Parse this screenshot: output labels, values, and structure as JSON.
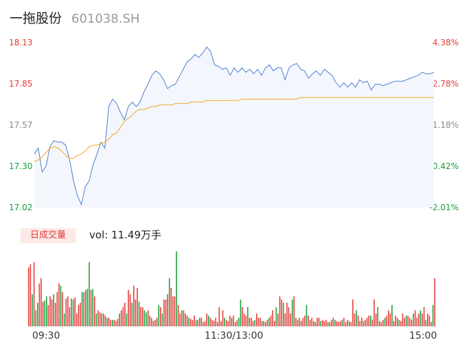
{
  "header": {
    "name": "一拖股份",
    "code": "601038.SH"
  },
  "colors": {
    "up": "#e53935",
    "down": "#1a9e3a",
    "price_line": "#4a7fd6",
    "avg_line": "#f5a623",
    "area_fill": "#f3f6fc"
  },
  "volume": {
    "badge": "日成交量",
    "text": "vol: 11.49万手"
  },
  "chart_data": [
    {
      "type": "line",
      "title": "",
      "y_left_ticks": [
        "18.13",
        "17.85",
        "17.57",
        "17.30",
        "17.02"
      ],
      "y_right_ticks": [
        "4.38%",
        "2.78%",
        "1.18%",
        "-0.42%",
        "-2.01%"
      ],
      "ylim": [
        17.02,
        18.13
      ],
      "x_ticks": [
        "09:30",
        "11:30/13:00",
        "15:00"
      ],
      "series": [
        {
          "type": "price",
          "values": [
            17.38,
            17.42,
            17.26,
            17.3,
            17.43,
            17.47,
            17.46,
            17.46,
            17.44,
            17.34,
            17.2,
            17.1,
            17.04,
            17.16,
            17.2,
            17.31,
            17.38,
            17.46,
            17.42,
            17.7,
            17.75,
            17.72,
            17.66,
            17.61,
            17.7,
            17.73,
            17.7,
            17.73,
            17.8,
            17.85,
            17.91,
            17.94,
            17.92,
            17.88,
            17.82,
            17.84,
            17.85,
            17.9,
            17.95,
            18.0,
            18.02,
            18.05,
            18.03,
            18.06,
            18.1,
            18.07,
            17.98,
            17.97,
            17.95,
            17.96,
            17.91,
            17.96,
            17.93,
            17.96,
            17.93,
            17.95,
            17.92,
            17.95,
            17.91,
            17.96,
            17.98,
            17.94,
            17.96,
            17.96,
            17.88,
            17.96,
            17.98,
            17.99,
            17.95,
            17.94,
            17.89,
            17.92,
            17.94,
            17.91,
            17.95,
            17.93,
            17.91,
            17.86,
            17.83,
            17.86,
            17.83,
            17.86,
            17.83,
            17.88,
            17.86,
            17.87,
            17.81,
            17.85,
            17.85,
            17.84,
            17.85,
            17.86,
            17.87,
            17.87,
            17.87,
            17.88,
            17.89,
            17.9,
            17.91,
            17.93,
            17.92,
            17.92,
            17.93
          ]
        },
        {
          "type": "average",
          "values": [
            17.33,
            17.34,
            17.36,
            17.39,
            17.42,
            17.43,
            17.42,
            17.4,
            17.37,
            17.35,
            17.35,
            17.37,
            17.38,
            17.4,
            17.43,
            17.44,
            17.44,
            17.45,
            17.46,
            17.48,
            17.51,
            17.52,
            17.56,
            17.6,
            17.62,
            17.64,
            17.67,
            17.68,
            17.68,
            17.69,
            17.7,
            17.7,
            17.71,
            17.71,
            17.71,
            17.71,
            17.72,
            17.72,
            17.72,
            17.72,
            17.73,
            17.73,
            17.73,
            17.73,
            17.74,
            17.74,
            17.74,
            17.74,
            17.74,
            17.74,
            17.74,
            17.74,
            17.74,
            17.75,
            17.75,
            17.75,
            17.75,
            17.75,
            17.75,
            17.75,
            17.75,
            17.75,
            17.75,
            17.75,
            17.75,
            17.75,
            17.75,
            17.75,
            17.76,
            17.76,
            17.76,
            17.76,
            17.76,
            17.76,
            17.76,
            17.76,
            17.76,
            17.76,
            17.76,
            17.76,
            17.76,
            17.76,
            17.76,
            17.76,
            17.76,
            17.76,
            17.76,
            17.76,
            17.76,
            17.76,
            17.76,
            17.76,
            17.76,
            17.76,
            17.76,
            17.76,
            17.76,
            17.76,
            17.76,
            17.76,
            17.76,
            17.76,
            17.76
          ]
        }
      ]
    },
    {
      "type": "bar",
      "title": "",
      "values": [
        55,
        58,
        30,
        60,
        15,
        22,
        40,
        45,
        23,
        24,
        28,
        20,
        28,
        25,
        30,
        22,
        32,
        40,
        38,
        32,
        12,
        26,
        28,
        18,
        26,
        25,
        27,
        12,
        20,
        22,
        32,
        32,
        34,
        35,
        60,
        34,
        35,
        28,
        12,
        15,
        13,
        12,
        12,
        10,
        8,
        8,
        6,
        6,
        6,
        5,
        7,
        12,
        15,
        18,
        22,
        12,
        34,
        30,
        22,
        38,
        25,
        36,
        23,
        18,
        18,
        15,
        13,
        15,
        10,
        8,
        5,
        6,
        8,
        20,
        18,
        12,
        25,
        25,
        30,
        45,
        36,
        28,
        28,
        70,
        20,
        12,
        15,
        15,
        12,
        10,
        8,
        7,
        6,
        10,
        6,
        6,
        8,
        8,
        4,
        5,
        12,
        10,
        8,
        6,
        5,
        8,
        4,
        18,
        5,
        15,
        8,
        6,
        5,
        10,
        8,
        10,
        4,
        6,
        8,
        25,
        18,
        12,
        10,
        18,
        8,
        8,
        5,
        6,
        12,
        8,
        8,
        5,
        5,
        4,
        6,
        8,
        10,
        15,
        5,
        18,
        12,
        28,
        25,
        22,
        12,
        22,
        18,
        12,
        25,
        28,
        8,
        6,
        8,
        5,
        8,
        10,
        20,
        10,
        6,
        8,
        5,
        4,
        8,
        8,
        5,
        6,
        5,
        6,
        4,
        4,
        6,
        8,
        6,
        5,
        4,
        5,
        6,
        8,
        4,
        6,
        5,
        4,
        25,
        12,
        15,
        10,
        5,
        8,
        5,
        6,
        8,
        10,
        10,
        6,
        25,
        12,
        18,
        5,
        4,
        6,
        8,
        10,
        15,
        12,
        20,
        5,
        10,
        8,
        6,
        5,
        12,
        8,
        10,
        10,
        8,
        6,
        12,
        15,
        8,
        12,
        15,
        12,
        18,
        6,
        12,
        10,
        4,
        20,
        45
      ],
      "colors": [
        "up",
        "up",
        "down",
        "up",
        "down",
        "down",
        "up",
        "up",
        "up",
        "down",
        "down",
        "up",
        "up",
        "up",
        "down",
        "up",
        "up",
        "up",
        "down",
        "up",
        "down",
        "up",
        "up",
        "up",
        "down",
        "down",
        "up",
        "up",
        "up",
        "up",
        "down",
        "up",
        "down",
        "down",
        "down",
        "up",
        "down",
        "up",
        "down",
        "up",
        "up",
        "down",
        "up",
        "up",
        "down",
        "up",
        "up",
        "down",
        "up",
        "up",
        "up",
        "down",
        "up",
        "up",
        "up",
        "down",
        "up",
        "up",
        "down",
        "up",
        "up",
        "up",
        "down",
        "up",
        "up",
        "down",
        "down",
        "up",
        "up",
        "down",
        "up",
        "up",
        "up",
        "down",
        "up",
        "down",
        "up",
        "up",
        "up",
        "down",
        "up",
        "up",
        "up",
        "down",
        "up",
        "up",
        "down",
        "up",
        "up",
        "up",
        "down",
        "up",
        "up",
        "up",
        "down",
        "up",
        "up",
        "down",
        "up",
        "up",
        "up",
        "down",
        "up",
        "up",
        "up",
        "up",
        "down",
        "up",
        "up",
        "up",
        "down",
        "up",
        "up",
        "up",
        "down",
        "up",
        "up",
        "up",
        "down",
        "down",
        "up",
        "up",
        "up",
        "down",
        "up",
        "up",
        "up",
        "down",
        "up",
        "up",
        "up",
        "down",
        "up",
        "up",
        "up",
        "down",
        "up",
        "up",
        "up",
        "down",
        "up",
        "up",
        "up",
        "down",
        "up",
        "up",
        "up",
        "up",
        "down",
        "up",
        "up",
        "up",
        "down",
        "up",
        "up",
        "up",
        "down",
        "up",
        "up",
        "up",
        "down",
        "up",
        "up",
        "up",
        "down",
        "up",
        "up",
        "up",
        "down",
        "up",
        "up",
        "up",
        "down",
        "up",
        "up",
        "up",
        "down",
        "up",
        "up",
        "up",
        "down",
        "up",
        "up",
        "up",
        "down",
        "up",
        "up",
        "up",
        "down",
        "up",
        "up",
        "up",
        "down",
        "up",
        "up",
        "up",
        "down",
        "up",
        "up",
        "up",
        "down",
        "up",
        "up",
        "up",
        "down",
        "up",
        "up",
        "up",
        "down",
        "up",
        "up",
        "up",
        "down",
        "up",
        "up",
        "up",
        "down",
        "up",
        "up",
        "up",
        "down",
        "up",
        "up",
        "down",
        "up",
        "up",
        "up",
        "down",
        "up",
        "up",
        "up",
        "down",
        "up",
        "up",
        "down",
        "down",
        "up"
      ]
    }
  ]
}
